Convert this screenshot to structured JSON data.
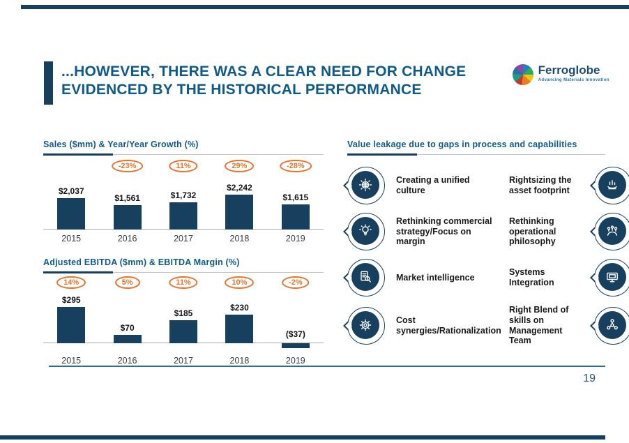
{
  "slide": {
    "page_number": "19"
  },
  "header": {
    "title_line1": "...HOWEVER, THERE WAS A CLEAR NEED FOR CHANGE",
    "title_line2": "EVIDENCED BY THE HISTORICAL PERFORMANCE"
  },
  "logo": {
    "brand": "Ferroglobe",
    "tagline": "Advancing Materials Innovation"
  },
  "chart_data": [
    {
      "type": "bar",
      "title": "Sales ($mm) & Year/Year Growth (%)",
      "categories": [
        "2015",
        "2016",
        "2017",
        "2018",
        "2019"
      ],
      "series": [
        {
          "name": "Sales ($mm)",
          "values": [
            2037,
            1561,
            1732,
            2242,
            1615
          ]
        },
        {
          "name": "Year/Year Growth (%)",
          "values": [
            null,
            -23,
            11,
            29,
            -28
          ]
        }
      ],
      "bar_labels": [
        "$2,037",
        "$1,561",
        "$1,732",
        "$2,242",
        "$1,615"
      ],
      "badge_labels": [
        "",
        "-23%",
        "11%",
        "29%",
        "-28%"
      ],
      "ylim": [
        0,
        2400
      ],
      "grid": false,
      "legend": "none",
      "bar_color": "#17405f",
      "badge_color": "#e9732a"
    },
    {
      "type": "bar",
      "title": "Adjusted EBITDA ($mm) & EBITDA Margin (%)",
      "categories": [
        "2015",
        "2016",
        "2017",
        "2018",
        "2019"
      ],
      "series": [
        {
          "name": "Adjusted EBITDA ($mm)",
          "values": [
            295,
            70,
            185,
            230,
            -37
          ]
        },
        {
          "name": "EBITDA Margin (%)",
          "values": [
            14,
            5,
            11,
            10,
            -2
          ]
        }
      ],
      "bar_labels": [
        "$295",
        "$70",
        "$185",
        "$230",
        "($37)"
      ],
      "badge_labels": [
        "14%",
        "5%",
        "11%",
        "10%",
        "-2%"
      ],
      "ylim": [
        -50,
        320
      ],
      "grid": false,
      "legend": "none",
      "bar_color": "#17405f",
      "badge_color": "#e9732a"
    }
  ],
  "right_panel": {
    "title": "Value leakage due to gaps in process and capabilities",
    "items": [
      {
        "icon": "globe-culture-icon",
        "label": "Creating a unified culture",
        "side": "left"
      },
      {
        "icon": "hand-chart-icon",
        "label": "Rightsizing the asset footprint",
        "side": "right"
      },
      {
        "icon": "lightbulb-strategy-icon",
        "label": "Rethinking commercial strategy/Focus on margin",
        "side": "left"
      },
      {
        "icon": "people-arch-icon",
        "label": "Rethinking operational philosophy",
        "side": "right"
      },
      {
        "icon": "document-magnifier-icon",
        "label": "Market intelligence",
        "side": "left"
      },
      {
        "icon": "monitor-systems-icon",
        "label": "Systems Integration",
        "side": "right"
      },
      {
        "icon": "gear-synergies-icon",
        "label": "Cost synergies/Rationalization",
        "side": "left"
      },
      {
        "icon": "team-network-icon",
        "label": "Right Blend of skills on Management Team",
        "side": "right"
      }
    ]
  },
  "colors": {
    "navy": "#17405f",
    "header_blue": "#0e5a8a",
    "orange": "#e9732a",
    "footer_rule": "#2e6e9e",
    "text": "#1a1a1a"
  }
}
